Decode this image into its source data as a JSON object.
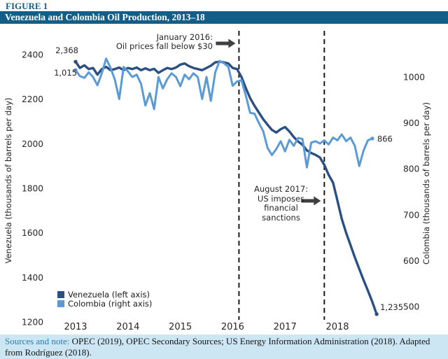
{
  "figure_label": "FIGURE 1",
  "title": "Venezuela and Colombia Oil Production, 2013–18",
  "footer": {
    "prefix": "Sources and note:",
    "text": " OPEC (2019), OPEC Secondary Sources; US Energy Information Administration (2018). Adapted from Rodríguez (2018)."
  },
  "colors": {
    "title_bar_bg": "#135e88",
    "figure_label_text": "#155e87",
    "footer_bg": "#cde6f4",
    "footer_prefix_text": "#2e7cab",
    "venezuela_line": "#2a5083",
    "colombia_line": "#5b9bd5",
    "dashed_line": "#1a1a1a",
    "arrow": "#3f3f3f"
  },
  "chart_data": {
    "type": "line",
    "title": "Venezuela and Colombia Oil Production, 2013–18",
    "x_unit": "monthly values starting January 2013",
    "x_tick_labels": [
      "2013",
      "2014",
      "2015",
      "2016",
      "2017",
      "2018"
    ],
    "grid": false,
    "legend_position": "bottom-left-inside",
    "left_axis": {
      "label": "Venezuela (thousands of barrels per day)",
      "ticks": [
        2400,
        2200,
        2000,
        1800,
        1600,
        1400,
        1200
      ],
      "range": [
        1200,
        2400
      ]
    },
    "right_axis": {
      "label": "Colombia (thousands of barrels per day)",
      "ticks": [
        1000,
        900,
        800,
        700,
        600,
        500
      ],
      "range": [
        500,
        1000
      ]
    },
    "series": [
      {
        "name": "Venezuela (left axis)",
        "axis": "left",
        "color": "#2a5083",
        "start_label": "2,368",
        "end_label": "1,235",
        "start_value": 2368,
        "end_value": 1235,
        "values": [
          2368,
          2340,
          2352,
          2335,
          2340,
          2310,
          2335,
          2345,
          2330,
          2335,
          2342,
          2330,
          2340,
          2335,
          2342,
          2330,
          2338,
          2330,
          2336,
          2318,
          2330,
          2340,
          2335,
          2342,
          2355,
          2360,
          2348,
          2340,
          2335,
          2330,
          2340,
          2350,
          2365,
          2368,
          2365,
          2360,
          2340,
          2335,
          2300,
          2250,
          2205,
          2170,
          2140,
          2110,
          2085,
          2062,
          2050,
          2065,
          2075,
          2055,
          2030,
          2010,
          1995,
          1970,
          1958,
          1950,
          1938,
          1905,
          1860,
          1825,
          1745,
          1663,
          1600,
          1545,
          1490,
          1438,
          1388,
          1340,
          1290,
          1235
        ]
      },
      {
        "name": "Colombia (right axis)",
        "axis": "right",
        "color": "#5b9bd5",
        "start_label": "1,015",
        "end_label": "866",
        "start_value": 1015,
        "end_value": 866,
        "values": [
          1015,
          1002,
          998,
          1010,
          1000,
          982,
          1008,
          1040,
          1020,
          994,
          952,
          1022,
          1012,
          1000,
          1005,
          985,
          938,
          965,
          930,
          1000,
          975,
          995,
          1008,
          1000,
          980,
          1005,
          995,
          1008,
          1000,
          952,
          1000,
          948,
          1010,
          1035,
          1030,
          1022,
          981,
          990,
          993,
          960,
          922,
          920,
          900,
          882,
          845,
          830,
          843,
          860,
          838,
          863,
          850,
          867,
          865,
          803,
          857,
          860,
          855,
          862,
          853,
          868,
          862,
          875,
          860,
          868,
          850,
          806,
          840,
          862,
          866
        ]
      }
    ],
    "events": [
      {
        "year": 2016.12,
        "lines": [
          "January 2016:",
          "Oil prices fall below $30"
        ]
      },
      {
        "year": 2017.75,
        "lines": [
          "August 2017:",
          "US imposes",
          "financial",
          "sanctions"
        ]
      }
    ],
    "legend": [
      "Venezuela (left axis)",
      "Colombia (right axis)"
    ]
  }
}
